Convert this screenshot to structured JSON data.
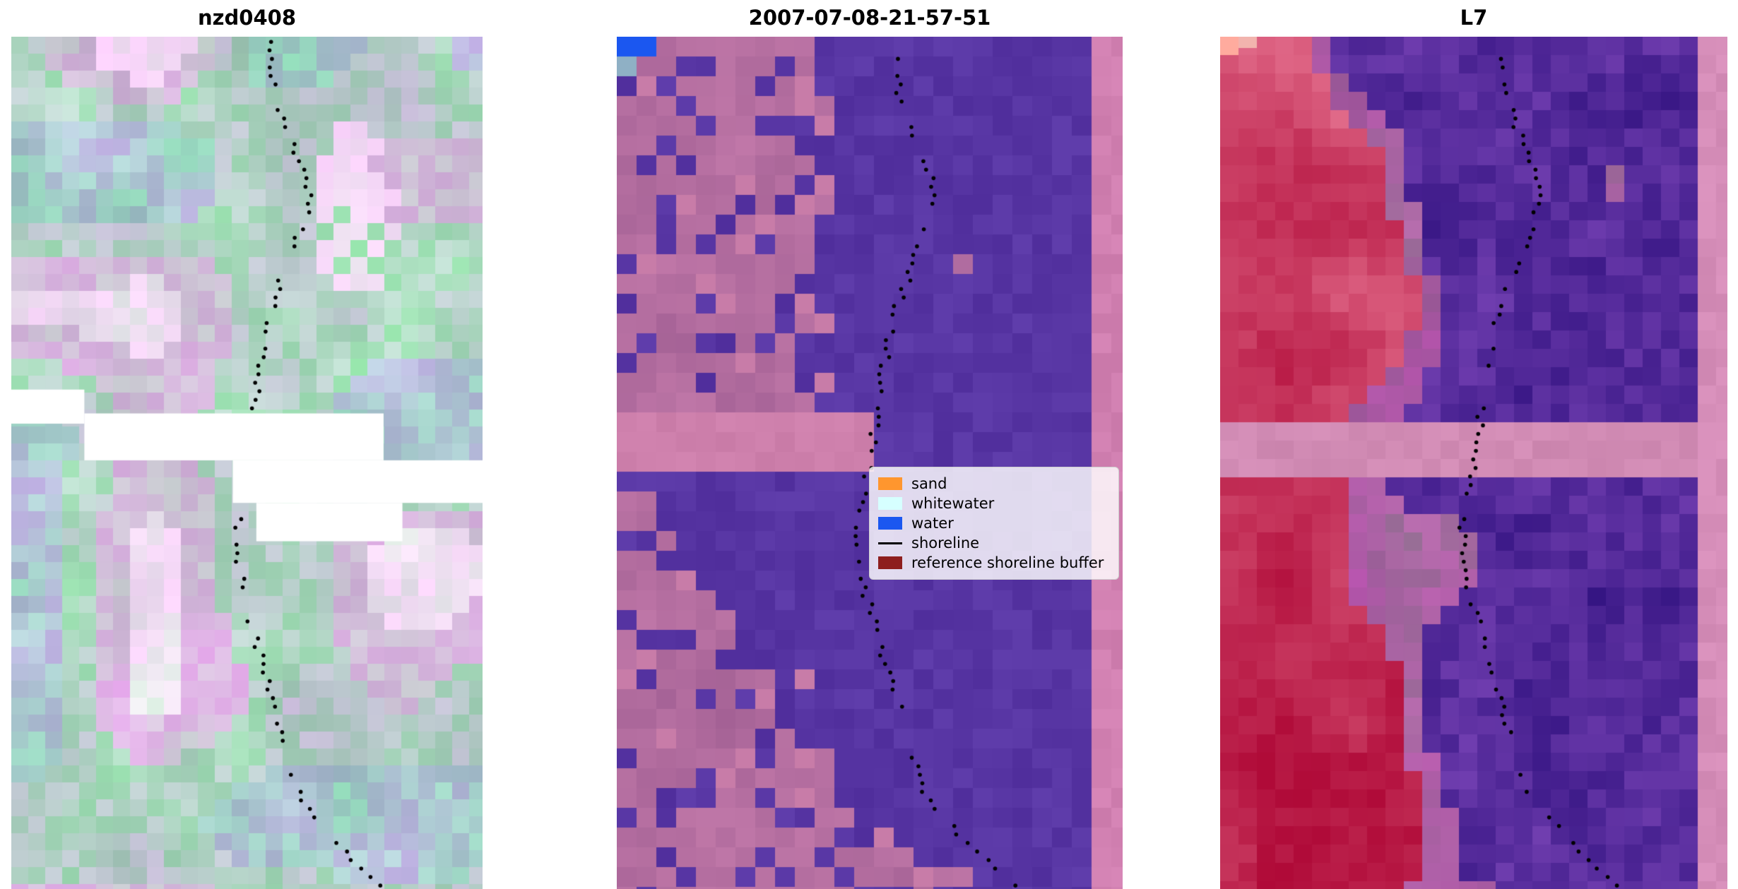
{
  "figure": {
    "panels": [
      {
        "title": "nzd0408"
      },
      {
        "title": "2007-07-08-21-57-51"
      },
      {
        "title": "L7"
      }
    ]
  },
  "legend": {
    "items": [
      {
        "label": "sand",
        "swatch": "patch",
        "color": "#ff962e"
      },
      {
        "label": "whitewater",
        "swatch": "patch",
        "color": "#d6ffff"
      },
      {
        "label": "water",
        "swatch": "patch",
        "color": "#1b57f0"
      },
      {
        "label": "shoreline",
        "swatch": "line",
        "color": "#000000"
      },
      {
        "label": "reference shoreline buffer",
        "swatch": "patch",
        "color": "#8e1e1e"
      }
    ]
  },
  "chart_data": [
    {
      "type": "heatmap",
      "title": "nzd0408",
      "description": "Pastel false-colour satellite image chip (pixelated) with the mapped shoreline drawn as small black dots; a white stair-stepped no-data gap crosses the middle of the tile",
      "palette": [
        "#9fc6b9",
        "#bcd8d0",
        "#cdbcd8",
        "#ecd8ee",
        "#ffffff"
      ],
      "no_data_gaps": [
        {
          "x": 0.0,
          "y": 0.414,
          "w": 0.155,
          "h": 0.04
        },
        {
          "x": 0.155,
          "y": 0.442,
          "w": 0.635,
          "h": 0.055
        },
        {
          "x": 0.47,
          "y": 0.497,
          "w": 0.53,
          "h": 0.05
        },
        {
          "x": 0.52,
          "y": 0.547,
          "w": 0.31,
          "h": 0.045
        }
      ],
      "annotations": [
        "dotted black shoreline"
      ]
    },
    {
      "type": "heatmap",
      "title": "2007-07-08-21-57-51",
      "description": "Pixel classification overlay: purple = classified water, mottled mauve = reference shoreline buffer, solid pink = no-data band and right-edge stripe, bright blue pixels in the top-left corner, dotted black shoreline",
      "classes": [
        "sand",
        "whitewater",
        "water",
        "shoreline",
        "reference shoreline buffer"
      ],
      "palette": [
        "#5a36a4",
        "#a86f9e",
        "#ce80ac",
        "#0a57f0",
        "#8fb0c5"
      ],
      "legend_position": "center right"
    },
    {
      "type": "heatmap",
      "title": "L7",
      "description": "Landsat 7 false-colour chip: red/crimson pixels on the left (land), dark purple pixels on the right (water), pink no-data band across the middle and a pink stripe on the right edge, salmon pixel top-left, dotted black shoreline",
      "palette": [
        "#c21f4a",
        "#d8607e",
        "#55289a",
        "#3a1686",
        "#d28cb6",
        "#ffab9e"
      ]
    }
  ],
  "shoreline_path": [
    [
      0.0,
      0.545
    ],
    [
      0.06,
      0.555
    ],
    [
      0.13,
      0.6
    ],
    [
      0.19,
      0.635
    ],
    [
      0.26,
      0.59
    ],
    [
      0.33,
      0.545
    ],
    [
      0.4,
      0.525
    ],
    [
      0.5,
      0.5
    ],
    [
      0.58,
      0.478
    ],
    [
      0.65,
      0.49
    ],
    [
      0.72,
      0.525
    ],
    [
      0.8,
      0.565
    ],
    [
      0.88,
      0.6
    ],
    [
      0.94,
      0.68
    ],
    [
      1.0,
      0.79
    ]
  ]
}
